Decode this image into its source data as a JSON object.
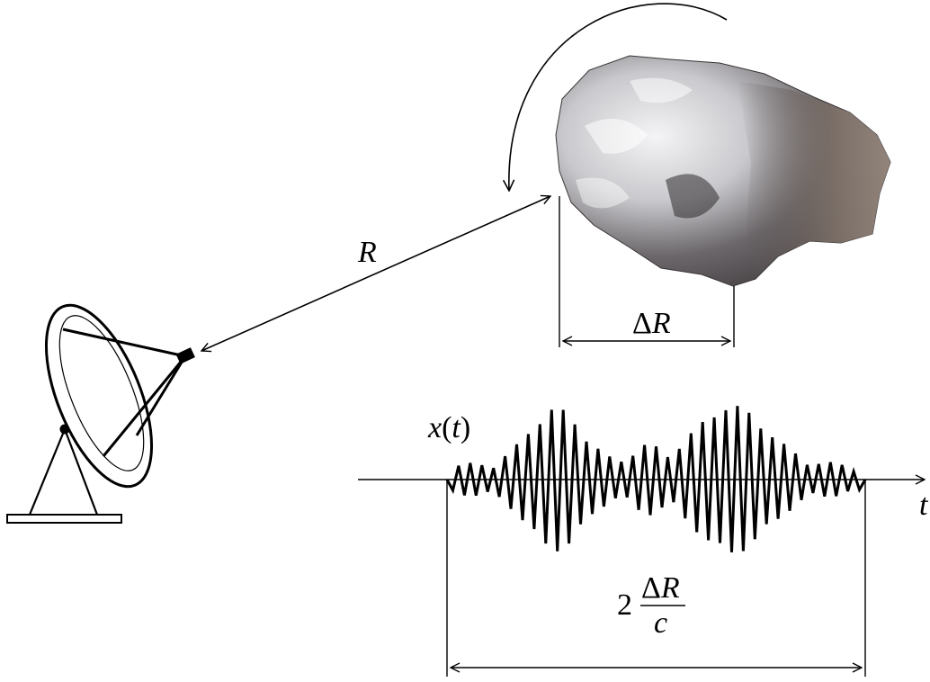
{
  "labels": {
    "range": "R",
    "delta": "Δ",
    "delta_var": "R",
    "signal_fn": "x",
    "signal_arg": "t",
    "time_axis": "t",
    "duration_coef": "2",
    "duration_num_delta": "Δ",
    "duration_num_var": "R",
    "duration_den": "c"
  },
  "icons": {
    "antenna": "radar-dish-icon",
    "target": "rock-target-icon",
    "rotation": "rotation-arrow-icon"
  },
  "colors": {
    "line": "#000000",
    "rock_light": "#e8e8ea",
    "rock_dark": "#4a4548",
    "rock_brown": "#7a6e66"
  }
}
